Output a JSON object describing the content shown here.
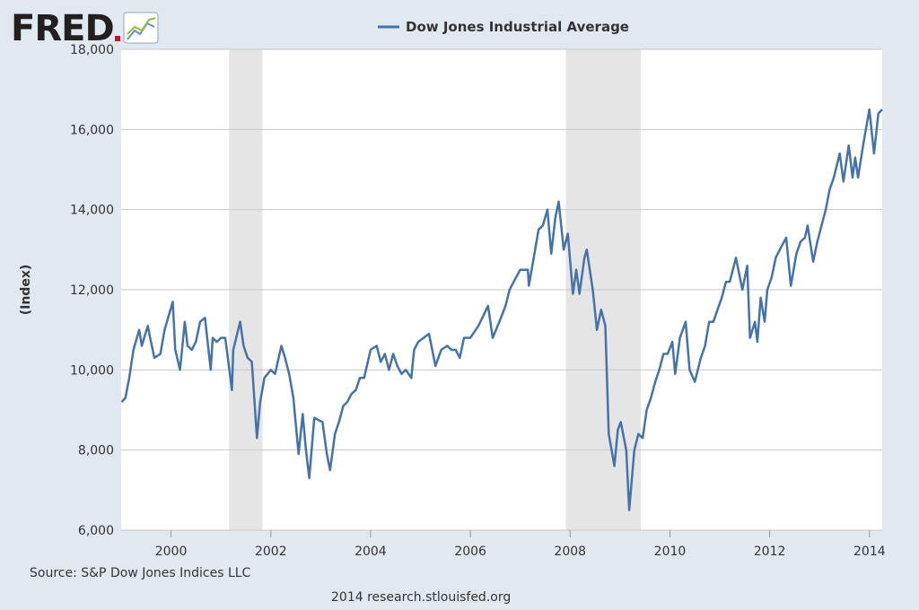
{
  "brand": {
    "name": "FRED"
  },
  "footer": {
    "source": "Source: S&P Dow Jones Indices LLC",
    "credit": "2014 research.stlouisfed.org"
  },
  "colors": {
    "series": "#4572a7",
    "recession": "#e5e5e5",
    "background": "#e1e9f0",
    "plot": "#ffffff",
    "grid": "#c8c8c8",
    "logo_red": "#c8102e",
    "logo_dark": "#231f20"
  },
  "chart_data": {
    "type": "line",
    "title": "",
    "xlabel": "",
    "ylabel": "(Index)",
    "xlim": [
      "1999-01-01",
      "2014-04-04"
    ],
    "ylim": [
      6000,
      18000
    ],
    "yticks": [
      6000,
      8000,
      10000,
      12000,
      14000,
      16000,
      18000
    ],
    "ytick_labels": [
      "6,000",
      "8,000",
      "10,000",
      "12,000",
      "14,000",
      "16,000",
      "18,000"
    ],
    "xticks": [
      "2000-01-01",
      "2002-01-01",
      "2004-01-01",
      "2006-01-01",
      "2008-01-01",
      "2010-01-01",
      "2012-01-01",
      "2014-01-01"
    ],
    "xtick_labels": [
      "2000",
      "2002",
      "2004",
      "2006",
      "2008",
      "2010",
      "2012",
      "2014"
    ],
    "grid": true,
    "legend": {
      "position": "top-center"
    },
    "recessions": [
      {
        "start": "2001-03-01",
        "end": "2001-11-01"
      },
      {
        "start": "2007-12-01",
        "end": "2009-06-01"
      }
    ],
    "series": [
      {
        "name": "Dow Jones Industrial Average",
        "x": [
          "1999-01-04",
          "1999-02-01",
          "1999-03-01",
          "1999-04-01",
          "1999-05-13",
          "1999-06-01",
          "1999-07-15",
          "1999-08-01",
          "1999-09-01",
          "1999-10-15",
          "1999-11-15",
          "2000-01-14",
          "2000-02-01",
          "2000-03-07",
          "2000-04-11",
          "2000-05-01",
          "2000-06-01",
          "2000-07-01",
          "2000-08-01",
          "2000-09-06",
          "2000-10-18",
          "2000-11-01",
          "2000-12-01",
          "2001-01-01",
          "2001-02-01",
          "2001-03-22",
          "2001-04-01",
          "2001-05-21",
          "2001-06-15",
          "2001-07-15",
          "2001-08-15",
          "2001-09-21",
          "2001-10-15",
          "2001-11-15",
          "2002-01-01",
          "2002-02-01",
          "2002-03-19",
          "2002-04-15",
          "2002-05-15",
          "2002-06-15",
          "2002-07-23",
          "2002-08-22",
          "2002-09-15",
          "2002-10-09",
          "2002-11-15",
          "2003-01-14",
          "2003-02-15",
          "2003-03-11",
          "2003-04-15",
          "2003-05-15",
          "2003-06-15",
          "2003-07-15",
          "2003-08-15",
          "2003-09-15",
          "2003-10-15",
          "2003-11-15",
          "2004-01-01",
          "2004-02-15",
          "2004-03-15",
          "2004-04-15",
          "2004-05-15",
          "2004-06-15",
          "2004-07-15",
          "2004-08-15",
          "2004-09-15",
          "2004-10-25",
          "2004-11-15",
          "2004-12-15",
          "2005-03-04",
          "2005-04-20",
          "2005-06-01",
          "2005-07-15",
          "2005-08-15",
          "2005-09-15",
          "2005-10-15",
          "2005-11-15",
          "2006-01-01",
          "2006-03-01",
          "2006-05-10",
          "2006-06-13",
          "2006-08-01",
          "2006-09-15",
          "2006-10-15",
          "2006-11-15",
          "2007-01-01",
          "2007-02-26",
          "2007-03-05",
          "2007-04-15",
          "2007-05-15",
          "2007-06-15",
          "2007-07-19",
          "2007-08-16",
          "2007-09-15",
          "2007-10-09",
          "2007-11-15",
          "2007-12-15",
          "2008-01-22",
          "2008-02-15",
          "2008-03-10",
          "2008-04-15",
          "2008-05-02",
          "2008-06-15",
          "2008-07-15",
          "2008-08-15",
          "2008-09-15",
          "2008-10-10",
          "2008-11-20",
          "2008-12-15",
          "2009-01-06",
          "2009-02-15",
          "2009-03-09",
          "2009-04-15",
          "2009-05-15",
          "2009-06-15",
          "2009-07-15",
          "2009-08-15",
          "2009-09-15",
          "2009-10-15",
          "2009-11-15",
          "2009-12-15",
          "2010-01-19",
          "2010-02-08",
          "2010-03-15",
          "2010-04-26",
          "2010-05-25",
          "2010-07-02",
          "2010-08-15",
          "2010-09-15",
          "2010-10-15",
          "2010-11-15",
          "2010-12-15",
          "2011-01-15",
          "2011-02-15",
          "2011-03-15",
          "2011-04-29",
          "2011-06-15",
          "2011-07-21",
          "2011-08-10",
          "2011-09-15",
          "2011-10-03",
          "2011-10-27",
          "2011-11-25",
          "2011-12-15",
          "2012-01-15",
          "2012-02-15",
          "2012-03-15",
          "2012-05-01",
          "2012-06-04",
          "2012-07-15",
          "2012-08-15",
          "2012-09-15",
          "2012-10-05",
          "2012-11-15",
          "2012-12-15",
          "2013-01-15",
          "2013-02-15",
          "2013-03-15",
          "2013-04-15",
          "2013-05-28",
          "2013-06-24",
          "2013-08-02",
          "2013-08-30",
          "2013-09-18",
          "2013-10-09",
          "2013-11-15",
          "2013-12-31",
          "2014-02-03",
          "2014-03-07",
          "2014-04-04"
        ],
        "values": [
          9200,
          9300,
          9800,
          10500,
          11000,
          10600,
          11100,
          10800,
          10300,
          10400,
          11000,
          11700,
          10500,
          10000,
          11200,
          10600,
          10500,
          10700,
          11200,
          11300,
          10000,
          10800,
          10700,
          10800,
          10800,
          9500,
          10500,
          11200,
          10600,
          10300,
          10200,
          8300,
          9200,
          9800,
          10000,
          9900,
          10600,
          10300,
          9900,
          9300,
          7900,
          8900,
          8000,
          7300,
          8800,
          8700,
          7900,
          7500,
          8400,
          8700,
          9100,
          9200,
          9400,
          9500,
          9800,
          9800,
          10500,
          10600,
          10200,
          10400,
          10000,
          10400,
          10100,
          9900,
          10000,
          9800,
          10500,
          10700,
          10900,
          10100,
          10500,
          10600,
          10500,
          10500,
          10300,
          10800,
          10800,
          11100,
          11600,
          10800,
          11200,
          11600,
          12000,
          12200,
          12500,
          12500,
          12100,
          12900,
          13500,
          13600,
          14000,
          12900,
          13800,
          14200,
          13000,
          13400,
          11900,
          12500,
          11900,
          12800,
          13000,
          12000,
          11000,
          11500,
          11100,
          8400,
          7600,
          8500,
          8700,
          8000,
          6500,
          8000,
          8400,
          8300,
          9000,
          9300,
          9700,
          10000,
          10400,
          10400,
          10700,
          9900,
          10800,
          11200,
          10000,
          9700,
          10300,
          10600,
          11200,
          11200,
          11500,
          11800,
          12200,
          12200,
          12800,
          12000,
          12600,
          10800,
          11200,
          10700,
          11800,
          11200,
          12000,
          12300,
          12800,
          13000,
          13300,
          12100,
          12900,
          13200,
          13300,
          13600,
          12700,
          13200,
          13600,
          14000,
          14500,
          14800,
          15400,
          14700,
          15600,
          14800,
          15300,
          14800,
          15600,
          16500,
          15400,
          16400,
          16500
        ]
      }
    ]
  }
}
